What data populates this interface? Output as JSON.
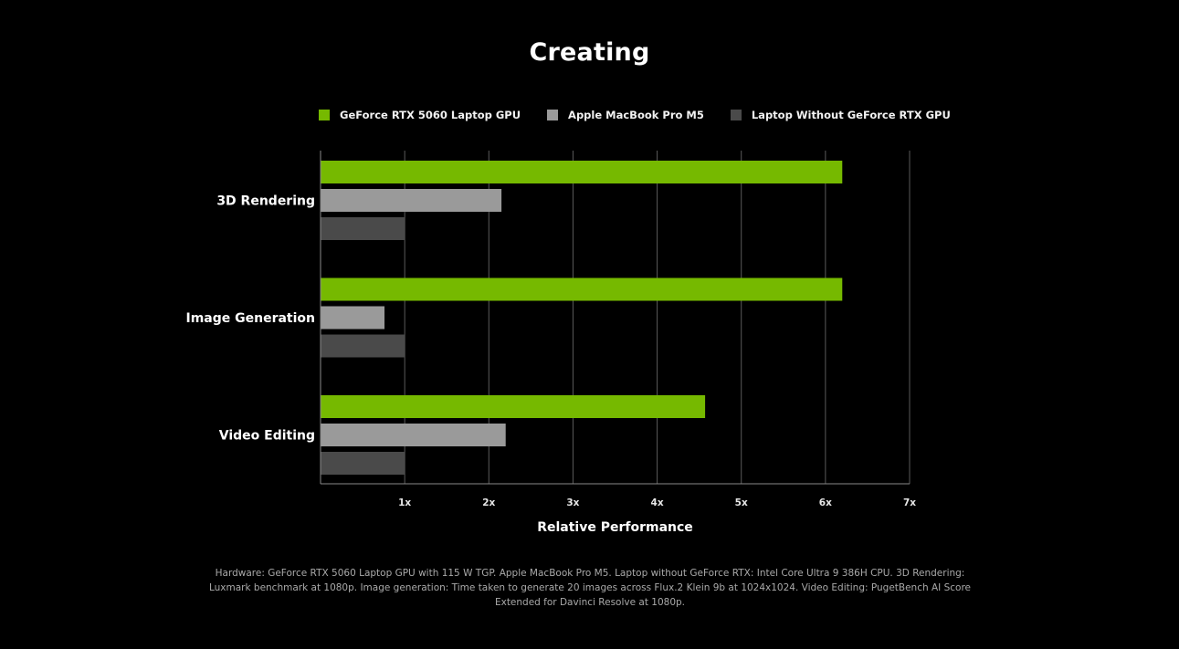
{
  "chart_data": {
    "type": "bar",
    "orientation": "horizontal",
    "title": "Creating",
    "xlabel": "Relative Performance",
    "ylabel": "",
    "categories": [
      "3D Rendering",
      "Image Generation",
      "Video Editing"
    ],
    "series": [
      {
        "name": "GeForce RTX 5060 Laptop GPU",
        "color": "#76b900",
        "values": [
          6.2,
          6.2,
          4.57
        ]
      },
      {
        "name": "Apple MacBook Pro M5",
        "color": "#9a9a9a",
        "values": [
          2.15,
          0.76,
          2.2
        ]
      },
      {
        "name": "Laptop Without GeForce RTX GPU",
        "color": "#4a4a4a",
        "values": [
          1.0,
          1.0,
          1.0
        ]
      }
    ],
    "xlim": [
      0,
      7
    ],
    "xticks": [
      1,
      2,
      3,
      4,
      5,
      6,
      7
    ],
    "xtick_labels": [
      "1x",
      "2x",
      "3x",
      "4x",
      "5x",
      "6x",
      "7x"
    ],
    "grid": "vertical",
    "legend_position": "top"
  },
  "footnote": "Hardware: GeForce RTX 5060 Laptop GPU with 115 W TGP. Apple MacBook Pro M5. Laptop without GeForce RTX: Intel Core Ultra 9 386H CPU. 3D Rendering: Luxmark benchmark at 1080p. Image generation: Time taken to generate 20 images across Flux.2 Klein 9b at 1024x1024. Video Editing: PugetBench AI Score Extended for Davinci Resolve at 1080p."
}
